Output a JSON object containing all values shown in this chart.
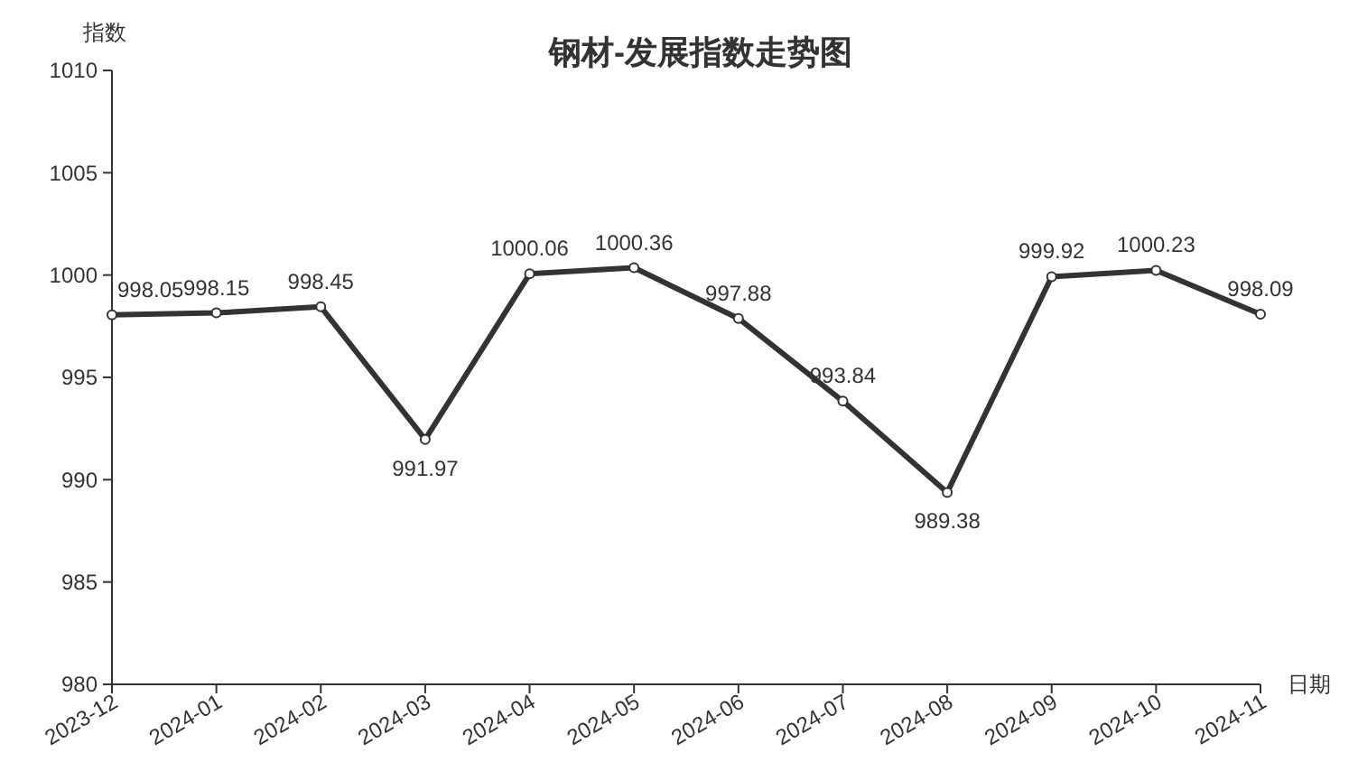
{
  "chart_data": {
    "type": "line",
    "title": "钢材-发展指数走势图",
    "xlabel": "日期",
    "ylabel": "指数",
    "categories": [
      "2023-12",
      "2024-01",
      "2024-02",
      "2024-03",
      "2024-04",
      "2024-05",
      "2024-06",
      "2024-07",
      "2024-08",
      "2024-09",
      "2024-10",
      "2024-11"
    ],
    "series": [
      {
        "color": "#333333",
        "values": [
          998.05,
          998.15,
          998.45,
          991.97,
          1000.06,
          1000.36,
          997.88,
          993.84,
          989.38,
          999.92,
          1000.23,
          998.09
        ]
      }
    ],
    "ylim": [
      980,
      1010
    ],
    "yticks": [
      980,
      985,
      990,
      995,
      1000,
      1005,
      1010
    ],
    "data_labels": true,
    "marker": "circle",
    "line_style": "solid",
    "grid": false
  }
}
